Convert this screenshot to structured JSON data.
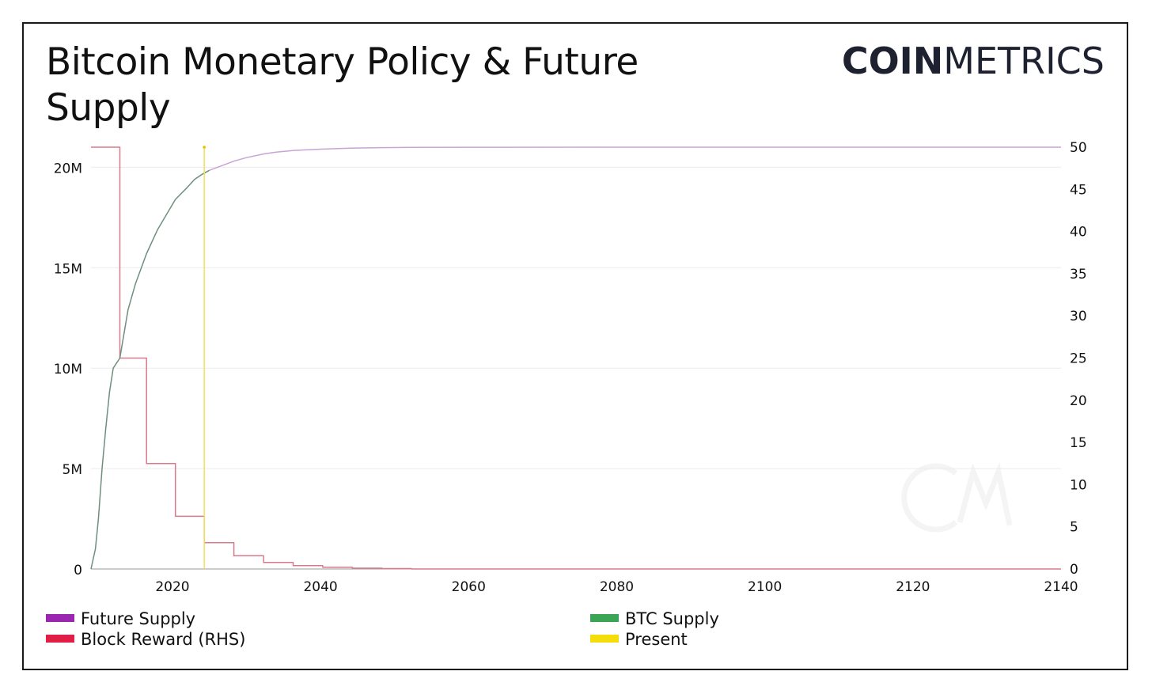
{
  "title": "Bitcoin Monetary Policy & Future Supply",
  "logo": {
    "bold": "COIN",
    "thin": "METRICS"
  },
  "colors": {
    "future_supply": "#c9a3d6",
    "btc_supply": "#6f8f7d",
    "block_reward": "#d87a8a",
    "present": "#f2e05a",
    "grid": "#ececec",
    "legend_future": "#9b27b0",
    "legend_btc": "#3aa655",
    "legend_reward": "#e01e46",
    "legend_present": "#f5dd0c"
  },
  "chart_data": {
    "type": "line",
    "title": "Bitcoin Monetary Policy & Future Supply",
    "x_ticks": [
      "2020",
      "2040",
      "2060",
      "2080",
      "2100",
      "2120",
      "2140"
    ],
    "y_left_ticks": [
      "0",
      "5M",
      "10M",
      "15M",
      "20M"
    ],
    "y_right_ticks": [
      "0",
      "5",
      "10",
      "15",
      "20",
      "25",
      "30",
      "35",
      "40",
      "45",
      "50"
    ],
    "xlim": [
      2009,
      2140
    ],
    "ylim_left": [
      0,
      21000000
    ],
    "ylim_right": [
      0,
      50
    ],
    "legend": [
      "Future Supply",
      "Block Reward (RHS)",
      "BTC Supply",
      "Present"
    ],
    "present_year": 2024.3,
    "series": [
      {
        "name": "BTC Supply",
        "axis": "left",
        "x": [
          2009,
          2009.6,
          2010,
          2010.5,
          2011,
          2011.5,
          2012,
          2012.9,
          2014,
          2015,
          2016.5,
          2018,
          2020.4,
          2022,
          2023,
          2024,
          2025
        ],
        "y": [
          0,
          1000000,
          2500000,
          5000000,
          7000000,
          8800000,
          10000000,
          10500000,
          12900000,
          14200000,
          15700000,
          16900000,
          18400000,
          19000000,
          19400000,
          19650000,
          19850000
        ]
      },
      {
        "name": "Future Supply",
        "axis": "left",
        "x": [
          2025,
          2028.4,
          2030,
          2032.4,
          2034,
          2036.4,
          2040,
          2044,
          2048,
          2052,
          2060,
          2080,
          2100,
          2120,
          2140
        ],
        "y": [
          19850000,
          20320000,
          20480000,
          20670000,
          20750000,
          20840000,
          20900000,
          20950000,
          20975000,
          20988000,
          20997000,
          21000000,
          21000000,
          21000000,
          21000000
        ]
      },
      {
        "name": "Block Reward (RHS)",
        "axis": "right",
        "x": [
          2009,
          2012.9,
          2012.9,
          2016.5,
          2016.5,
          2020.4,
          2020.4,
          2024.3,
          2024.3,
          2028.3,
          2028.3,
          2032.3,
          2032.3,
          2036.3,
          2036.3,
          2040.3,
          2040.3,
          2044.3,
          2044.3,
          2048.3,
          2048.3,
          2052.3,
          2052.3,
          2140
        ],
        "y": [
          50,
          50,
          25,
          25,
          12.5,
          12.5,
          6.25,
          6.25,
          3.125,
          3.125,
          1.5625,
          1.5625,
          0.78125,
          0.78125,
          0.390625,
          0.390625,
          0.1953,
          0.1953,
          0.0977,
          0.0977,
          0.0488,
          0.0488,
          0,
          0
        ]
      }
    ]
  }
}
